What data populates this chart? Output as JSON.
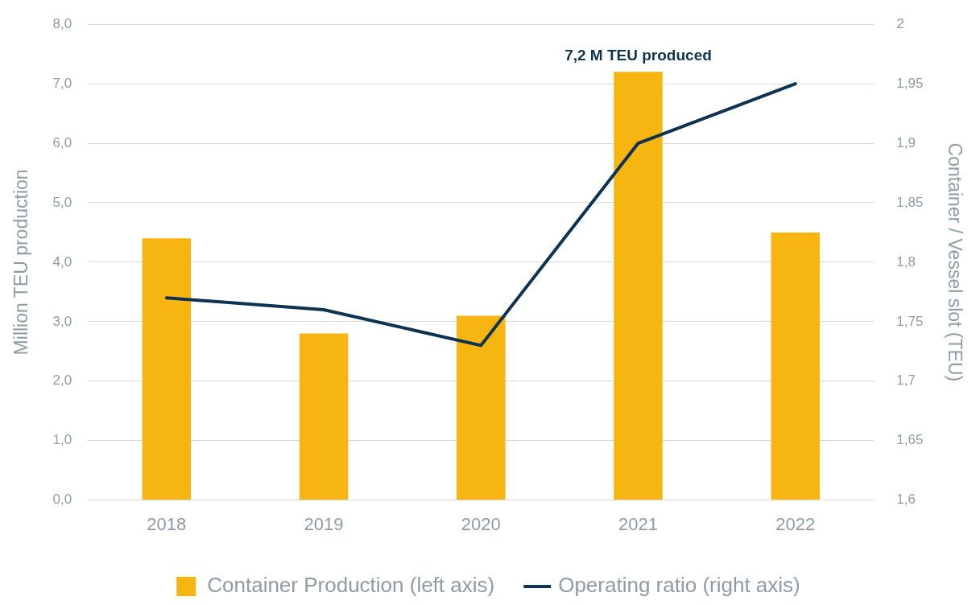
{
  "chart_data": {
    "type": "bar",
    "categories": [
      "2018",
      "2019",
      "2020",
      "2021",
      "2022"
    ],
    "series": [
      {
        "name": "Container Production (left axis)",
        "color": "#f6b511",
        "values": [
          4.4,
          2.8,
          3.1,
          7.2,
          4.5
        ]
      },
      {
        "name": "Operating ratio (right axis)",
        "type": "line",
        "axis": "y2",
        "color": "#0e3352",
        "values": [
          1.77,
          1.76,
          1.73,
          1.9,
          1.95
        ]
      }
    ],
    "ylabel": "Million TEU production",
    "y2label": "Container / Vessel slot (TEU)",
    "ylim": [
      0,
      8
    ],
    "yticks": [
      {
        "value": 0,
        "label": "0,0"
      },
      {
        "value": 1,
        "label": "1,0"
      },
      {
        "value": 2,
        "label": "2,0"
      },
      {
        "value": 3,
        "label": "3,0"
      },
      {
        "value": 4,
        "label": "4,0"
      },
      {
        "value": 5,
        "label": "5,0"
      },
      {
        "value": 6,
        "label": "6,0"
      },
      {
        "value": 7,
        "label": "7,0"
      },
      {
        "value": 8,
        "label": "8,0"
      }
    ],
    "y2lim": [
      1.6,
      2
    ],
    "y2ticks": [
      {
        "value": 1.6,
        "label": "1,6"
      },
      {
        "value": 1.65,
        "label": "1,65"
      },
      {
        "value": 1.7,
        "label": "1,7"
      },
      {
        "value": 1.75,
        "label": "1,75"
      },
      {
        "value": 1.8,
        "label": "1,8"
      },
      {
        "value": 1.85,
        "label": "1,85"
      },
      {
        "value": 1.9,
        "label": "1,9"
      },
      {
        "value": 1.95,
        "label": "1,95"
      },
      2
    ],
    "annotations": [
      {
        "text": "7,2 M TEU produced",
        "x": "2021",
        "y": 7.2
      }
    ],
    "grid": "y",
    "legend": "bottom",
    "marker": "none",
    "line_style": "solid"
  }
}
